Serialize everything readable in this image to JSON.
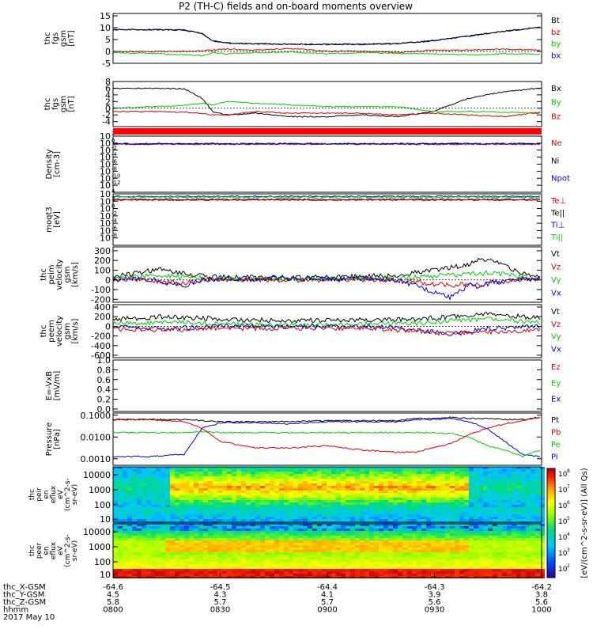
{
  "title": "P2 (TH-C) fields and on-board moments overview",
  "colors": {
    "black": "#000000",
    "red": "#e00000",
    "green": "#00d000",
    "blue": "#0000dd"
  },
  "chart_data": [
    {
      "type": "line",
      "name": "fgs_gsm",
      "ylabel": [
        "thc",
        "fgs",
        "gsm",
        "[nT]"
      ],
      "ylim": [
        -5,
        16
      ],
      "ticks": [
        "15",
        "10",
        "5",
        "0",
        "-5"
      ],
      "tick_values": [
        15,
        10,
        5,
        0,
        -5
      ],
      "legend": [
        {
          "label": "Bt",
          "color": "#000000"
        },
        {
          "label": "bz",
          "color": "#e00000"
        },
        {
          "label": "by",
          "color": "#00d000"
        },
        {
          "label": "bx",
          "color": "#0000dd"
        }
      ],
      "x": [
        0,
        10,
        20,
        25,
        28,
        32,
        40,
        50,
        60,
        70,
        80,
        90,
        100,
        110,
        120
      ],
      "series": [
        {
          "color": "#0000dd",
          "values": [
            9.2,
            9.2,
            9.0,
            7.5,
            4.5,
            3.5,
            3.2,
            3.0,
            3.0,
            3.0,
            3.3,
            4.5,
            6.5,
            8.5,
            10.2
          ]
        },
        {
          "color": "#000000",
          "values": [
            9.2,
            9.2,
            9.0,
            7.5,
            4.5,
            3.5,
            3.2,
            3.0,
            3.0,
            3.0,
            3.3,
            4.5,
            6.5,
            8.5,
            10.2
          ]
        },
        {
          "color": "#e00000",
          "values": [
            0,
            0,
            0,
            0.4,
            0.5,
            1,
            0.5,
            1.2,
            0,
            0.2,
            -0.5,
            0.5,
            0.5,
            1,
            0.5
          ]
        },
        {
          "color": "#00d000",
          "values": [
            -0.5,
            -0.8,
            -1.5,
            -1.7,
            -0.5,
            -1,
            -0.5,
            -0.2,
            -1,
            -0.5,
            -0.8,
            -1,
            -1.5,
            -1,
            -1.2
          ]
        }
      ]
    },
    {
      "type": "line",
      "name": "fgs_gsm_components",
      "ylabel": [
        "thc",
        "fgs",
        "gsm",
        "[nT]"
      ],
      "ylim": [
        -5.5,
        8
      ],
      "ticks": [
        "8",
        "6",
        "4",
        "2",
        "0",
        "-2",
        "-4"
      ],
      "tick_values": [
        8,
        6,
        4,
        2,
        0,
        -2,
        -4
      ],
      "legend": [
        {
          "label": "Bx",
          "color": "#000000"
        },
        {
          "label": "By",
          "color": "#00d000"
        },
        {
          "label": "Bz",
          "color": "#e00000"
        }
      ],
      "x": [
        0,
        10,
        20,
        25,
        28,
        32,
        40,
        50,
        60,
        70,
        80,
        90,
        100,
        110,
        120
      ],
      "series": [
        {
          "color": "#000000",
          "values": [
            6,
            6,
            5.8,
            3,
            -1,
            -2,
            -1.5,
            -2.5,
            -2.5,
            -2,
            -2.5,
            -1,
            3,
            5,
            6
          ]
        },
        {
          "color": "#00d000",
          "values": [
            0,
            0.5,
            0.8,
            1.5,
            1,
            2,
            1.5,
            1,
            0.5,
            0.5,
            0.5,
            -1,
            -1,
            -1.2,
            -1.5
          ]
        },
        {
          "color": "#e00000",
          "values": [
            -1,
            -1,
            -1.2,
            -1.5,
            -2,
            -2,
            -1,
            -1.5,
            -1.5,
            -1.5,
            -2,
            -1.5,
            -2,
            -2.5,
            -1.2
          ]
        }
      ]
    },
    {
      "type": "line",
      "name": "density",
      "ylabel": [
        "Density",
        "[cm-3]"
      ],
      "ylim": [
        -14,
        2
      ],
      "ticks": [
        "10",
        "10",
        "10",
        "10",
        "10",
        "10",
        "10",
        "10"
      ],
      "tick_exp": [
        "2",
        "0",
        "-2",
        "-4",
        "-6",
        "-8",
        "-10",
        "-12"
      ],
      "tick_values": [
        2,
        0,
        -2,
        -4,
        -6,
        -8,
        -10,
        -12
      ],
      "legend": [
        {
          "label": "Ne",
          "color": "#e00000"
        },
        {
          "label": "Ni",
          "color": "#000000"
        },
        {
          "label": "Npot",
          "color": "#0000dd"
        }
      ],
      "x": [
        0,
        120
      ],
      "series": [
        {
          "color": "#000000",
          "values": [
            -0.2,
            -0.2
          ]
        },
        {
          "color": "#e00000",
          "values": [
            -0.3,
            -0.3
          ]
        },
        {
          "color": "#0000dd",
          "values": [
            -0.15,
            -0.15
          ]
        }
      ]
    },
    {
      "type": "line",
      "name": "temperature",
      "ylabel": [
        "moqt3",
        "[eV]"
      ],
      "ylim": [
        -10,
        4
      ],
      "ticks": [
        "10",
        "10",
        "10",
        "10",
        "10",
        "10",
        "10"
      ],
      "tick_exp": [
        "4",
        "2",
        "0",
        "-2",
        "-4",
        "-6",
        "-8"
      ],
      "tick_values": [
        4,
        2,
        0,
        -2,
        -4,
        -6,
        -8
      ],
      "legend": [
        {
          "label": "Te⊥",
          "color": "#e00000"
        },
        {
          "label": "Te||",
          "color": "#000000"
        },
        {
          "label": "Ti⊥",
          "color": "#0000dd"
        },
        {
          "label": "Ti||",
          "color": "#00d000"
        }
      ],
      "x": [
        0,
        120
      ],
      "series": [
        {
          "color": "#0000dd",
          "values": [
            3.3,
            3.3
          ]
        },
        {
          "color": "#00d000",
          "values": [
            3.1,
            3.1
          ]
        },
        {
          "color": "#000000",
          "values": [
            2.5,
            2.5
          ]
        },
        {
          "color": "#e00000",
          "values": [
            2.3,
            2.3
          ]
        }
      ]
    },
    {
      "type": "line",
      "name": "peim_velocity",
      "ylabel": [
        "thc",
        "peim",
        "velocity",
        "gsm",
        "[km/s]"
      ],
      "ylim": [
        -230,
        340
      ],
      "ticks": [
        "300",
        "200",
        "100",
        "0",
        "-100",
        "-200"
      ],
      "tick_values": [
        300,
        200,
        100,
        0,
        -100,
        -200
      ],
      "legend": [
        {
          "label": "Vt",
          "color": "#000000"
        },
        {
          "label": "Vz",
          "color": "#e00000"
        },
        {
          "label": "Vy",
          "color": "#00d000"
        },
        {
          "label": "Vx",
          "color": "#0000dd"
        }
      ],
      "x": [
        0,
        5,
        10,
        15,
        20,
        25,
        30,
        40,
        50,
        60,
        70,
        80,
        85,
        90,
        95,
        100,
        103,
        106,
        110,
        115,
        120
      ],
      "series": [
        {
          "color": "#000000",
          "values": [
            40,
            60,
            90,
            110,
            60,
            40,
            30,
            30,
            20,
            30,
            40,
            40,
            80,
            100,
            130,
            150,
            220,
            200,
            150,
            60,
            40
          ]
        },
        {
          "color": "#00d000",
          "values": [
            20,
            30,
            40,
            40,
            30,
            20,
            10,
            10,
            10,
            10,
            10,
            10,
            30,
            40,
            50,
            60,
            60,
            80,
            60,
            30,
            20
          ]
        },
        {
          "color": "#e00000",
          "values": [
            0,
            10,
            0,
            -20,
            -40,
            0,
            5,
            0,
            0,
            0,
            0,
            0,
            -20,
            -40,
            -60,
            -30,
            -60,
            -30,
            -20,
            0,
            10
          ]
        },
        {
          "color": "#0000dd",
          "values": [
            10,
            20,
            10,
            -30,
            -60,
            0,
            10,
            10,
            10,
            10,
            10,
            0,
            -60,
            -120,
            -180,
            -50,
            -80,
            -30,
            -20,
            10,
            20
          ]
        }
      ]
    },
    {
      "type": "line",
      "name": "peem_velocity",
      "ylabel": [
        "thc",
        "peem",
        "velocity",
        "gsm",
        "[km/s]"
      ],
      "ylim": [
        -650,
        450
      ],
      "ticks": [
        "400",
        "200",
        "0",
        "-200",
        "-400",
        "-600"
      ],
      "tick_values": [
        400,
        200,
        0,
        -200,
        -400,
        -600
      ],
      "legend": [
        {
          "label": "Vt",
          "color": "#000000"
        },
        {
          "label": "Vz",
          "color": "#e00000"
        },
        {
          "label": "Vy",
          "color": "#00d000"
        },
        {
          "label": "Vx",
          "color": "#0000dd"
        }
      ],
      "x": [
        0,
        15,
        30,
        45,
        60,
        75,
        85,
        95,
        105,
        120
      ],
      "series": [
        {
          "color": "#000000",
          "values": [
            150,
            200,
            150,
            120,
            120,
            130,
            150,
            200,
            250,
            180
          ]
        },
        {
          "color": "#00d000",
          "values": [
            60,
            80,
            50,
            40,
            40,
            50,
            60,
            120,
            150,
            80
          ]
        },
        {
          "color": "#0000dd",
          "values": [
            0,
            -50,
            0,
            0,
            0,
            0,
            -80,
            -150,
            -50,
            0
          ]
        },
        {
          "color": "#e00000",
          "values": [
            -50,
            -80,
            -40,
            -40,
            -40,
            -50,
            -100,
            -150,
            -120,
            -60
          ]
        }
      ]
    },
    {
      "type": "line",
      "name": "e_field",
      "ylabel": [
        "E=-VxB",
        "[mV/m]"
      ],
      "ylim": [
        -0.05,
        1.0
      ],
      "ticks": [
        "1.0",
        "0.8",
        "0.6",
        "0.4",
        "0.2",
        "0.0"
      ],
      "tick_values": [
        1.0,
        0.8,
        0.6,
        0.4,
        0.2,
        0.0
      ],
      "legend": [
        {
          "label": "Ez",
          "color": "#e00000"
        },
        {
          "label": "Ey",
          "color": "#00d000"
        },
        {
          "label": "Ex",
          "color": "#0000dd"
        }
      ],
      "x": [],
      "series": []
    },
    {
      "type": "line",
      "name": "pressure",
      "ylabel": [
        "Pressure",
        "[nPa]"
      ],
      "log": true,
      "ylim": [
        -3.3,
        -0.9
      ],
      "ticks": [
        "0.1000",
        "0.0100",
        "0.0010"
      ],
      "tick_values": [
        -1,
        -2,
        -3
      ],
      "legend": [
        {
          "label": "Pt",
          "color": "#000000"
        },
        {
          "label": "Pb",
          "color": "#e00000"
        },
        {
          "label": "Pe",
          "color": "#00d000"
        },
        {
          "label": "Pi",
          "color": "#0000dd"
        }
      ],
      "x": [
        0,
        10,
        20,
        25,
        30,
        40,
        50,
        60,
        70,
        80,
        85,
        90,
        95,
        100,
        105,
        110,
        115,
        120
      ],
      "series": [
        {
          "color": "#000000",
          "values": [
            -1.2,
            -1.2,
            -1.2,
            -1.25,
            -1.3,
            -1.3,
            -1.3,
            -1.25,
            -1.25,
            -1.25,
            -1.15,
            -1.15,
            -1.1,
            -1.15,
            -1.15,
            -1.2,
            -1.2,
            -1.1
          ]
        },
        {
          "color": "#0000dd",
          "values": [
            -2.9,
            -2.9,
            -2.8,
            -1.6,
            -1.35,
            -1.35,
            -1.4,
            -1.3,
            -1.3,
            -1.3,
            -1.2,
            -1.2,
            -1.15,
            -1.3,
            -1.6,
            -2.2,
            -2.8,
            -2.9
          ]
        },
        {
          "color": "#00d000",
          "values": [
            -1.8,
            -1.8,
            -1.8,
            -1.75,
            -1.8,
            -1.8,
            -1.8,
            -1.8,
            -1.8,
            -1.8,
            -1.8,
            -1.8,
            -1.85,
            -2.0,
            -2.4,
            -2.6,
            -2.9,
            -2.6
          ]
        },
        {
          "color": "#e00000",
          "values": [
            -1.2,
            -1.2,
            -1.3,
            -1.6,
            -2.2,
            -2.5,
            -2.5,
            -2.4,
            -2.6,
            -2.7,
            -2.7,
            -2.5,
            -2.3,
            -1.9,
            -1.6,
            -1.4,
            -1.25,
            -1.1
          ]
        }
      ]
    },
    {
      "type": "heatmap",
      "name": "peir_en_eflux",
      "ylabel": [
        "thc",
        "peir",
        "en",
        "eflux",
        "eV",
        "(cm^2-s-",
        "sr-eV)"
      ],
      "ticks": [
        "10000",
        "1000",
        "100",
        "10"
      ]
    },
    {
      "type": "heatmap",
      "name": "peer_en_eflux",
      "ylabel": [
        "thc",
        "peer",
        "en",
        "eflux",
        "eV",
        "(cm^2-s-",
        "sr-eV)"
      ],
      "ticks": [
        "10000",
        "1000",
        "100",
        "10"
      ]
    }
  ],
  "colorbar": {
    "label": "[eV/(cm^2-s-sr-eV)] (All Qs)",
    "exps": [
      "8",
      "7",
      "6",
      "5",
      "4",
      "3",
      "2"
    ]
  },
  "xaxis": {
    "rows": [
      {
        "label": "thc_X-GSM",
        "values": [
          "-64.6",
          "-64.5",
          "-64.4",
          "-64.3",
          "-64.2"
        ]
      },
      {
        "label": "thc_Y-GSM",
        "values": [
          "4.5",
          "4.3",
          "4.1",
          "3.9",
          "3.8"
        ]
      },
      {
        "label": "thc_Z-GSM",
        "values": [
          "5.8",
          "5.7",
          "5.7",
          "5.6",
          "5.6"
        ]
      },
      {
        "label": "hhmm",
        "values": [
          "0800",
          "0830",
          "0900",
          "0930",
          "1000"
        ]
      }
    ],
    "date": "2017 May 10"
  }
}
